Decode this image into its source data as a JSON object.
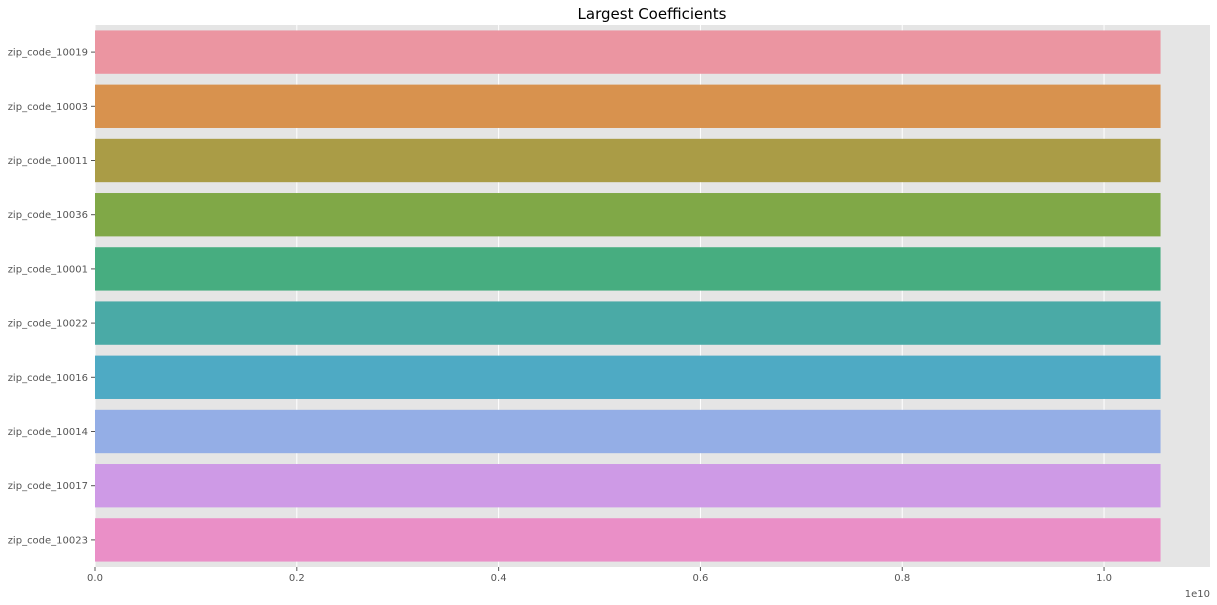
{
  "chart_data": {
    "type": "bar",
    "orientation": "horizontal",
    "title": "Largest Coefficients",
    "xlabel": "",
    "ylabel": "",
    "categories": [
      "zip_code_10019",
      "zip_code_10003",
      "zip_code_10011",
      "zip_code_10036",
      "zip_code_10001",
      "zip_code_10022",
      "zip_code_10016",
      "zip_code_10014",
      "zip_code_10017",
      "zip_code_10023"
    ],
    "values": [
      1.056,
      1.056,
      1.056,
      1.056,
      1.056,
      1.056,
      1.056,
      1.056,
      1.056,
      1.056
    ],
    "value_scale": "1e10",
    "xlim": [
      0,
      1.105
    ],
    "x_ticks": [
      0.0,
      0.2,
      0.4,
      0.6,
      0.8,
      1.0
    ],
    "x_tick_labels": [
      "0.0",
      "0.2",
      "0.4",
      "0.6",
      "0.8",
      "1.0"
    ],
    "offset_label": "1e10",
    "grid": true,
    "background_color": "#e5e5e5",
    "grid_color": "#ffffff",
    "colors": [
      "#eb95a1",
      "#d8924e",
      "#aa9c46",
      "#80a847",
      "#47ad80",
      "#4aaaa6",
      "#4eaac4",
      "#94aee6",
      "#ce9ae6",
      "#ea8fc7"
    ]
  }
}
